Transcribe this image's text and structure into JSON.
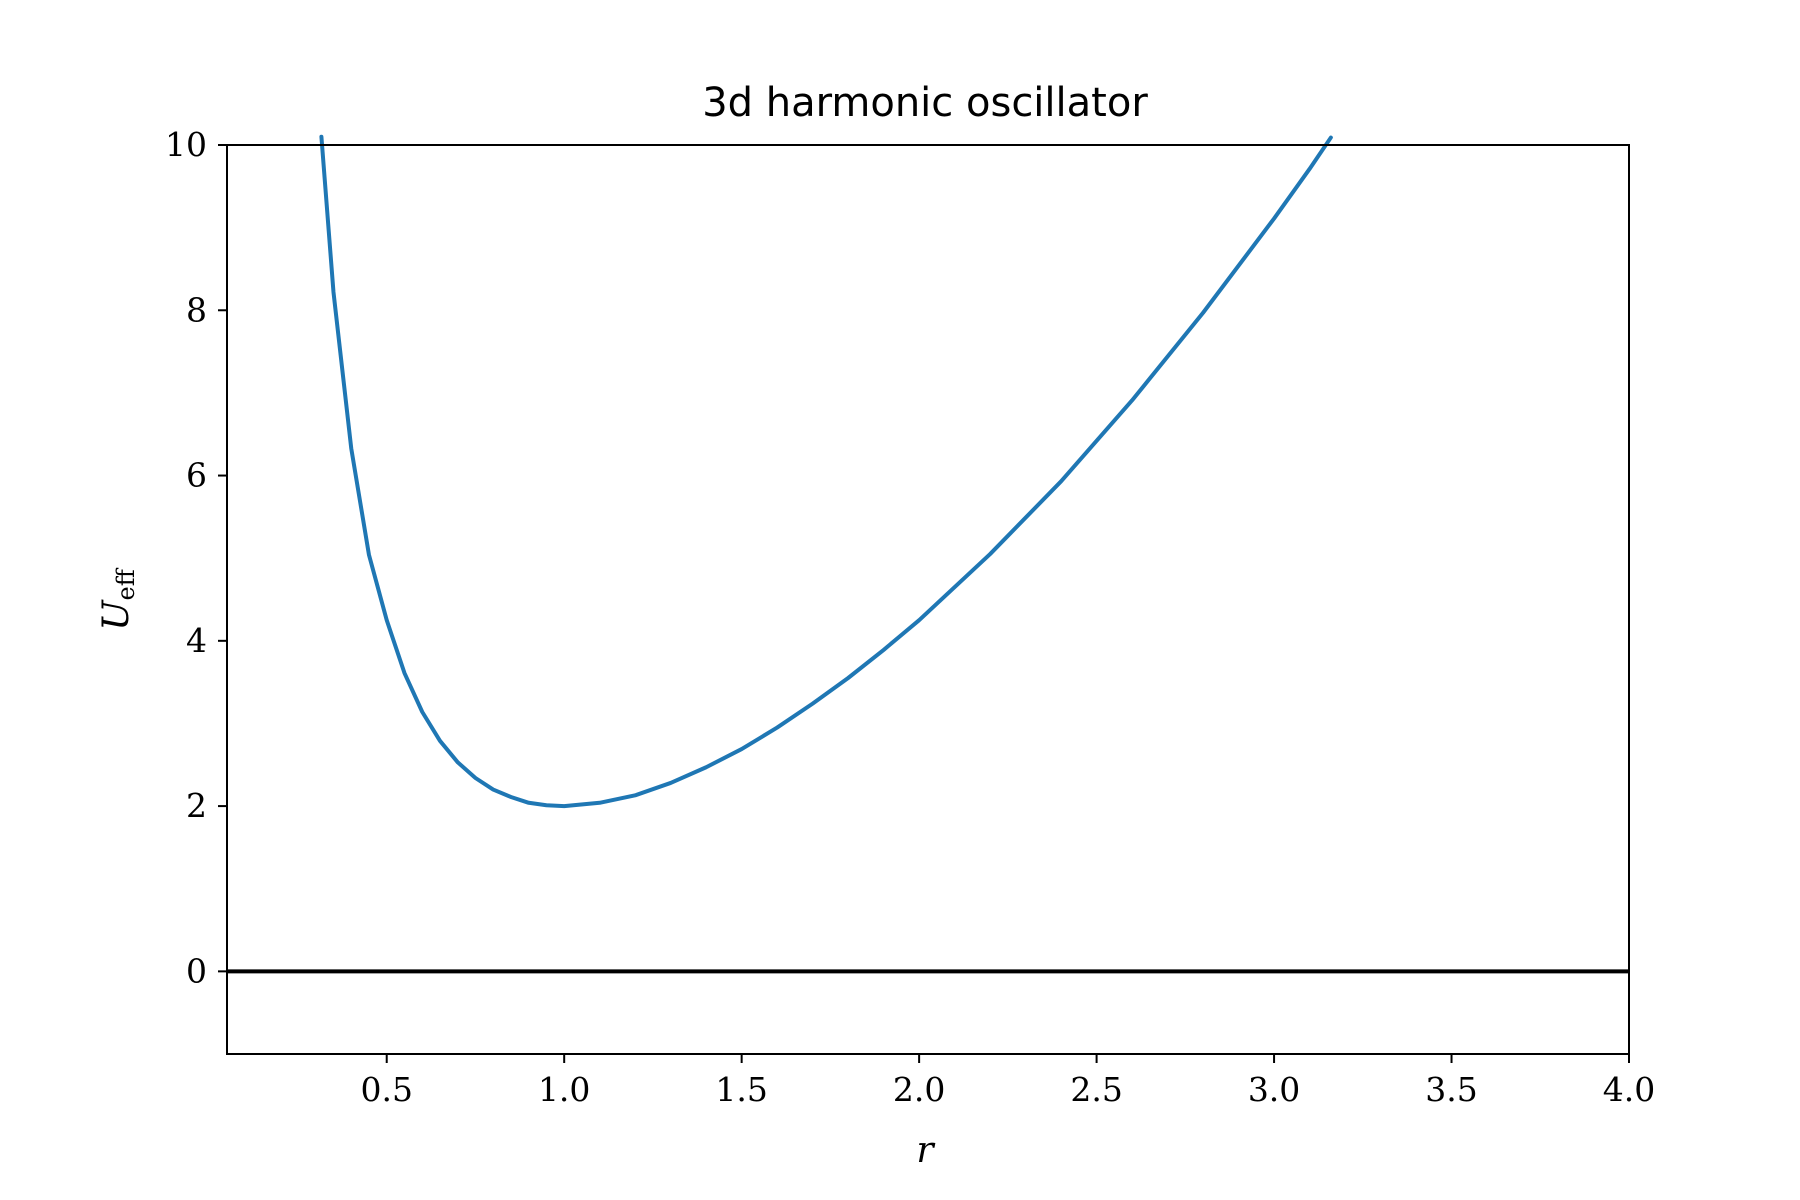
{
  "chart_data": {
    "type": "line",
    "title": "3d harmonic oscillator",
    "xlabel": "r",
    "ylabel": {
      "main": "U",
      "sub": "eff"
    },
    "xlim": [
      0.05,
      4.0
    ],
    "ylim": [
      -1,
      10
    ],
    "xticks": [
      0.5,
      1.0,
      1.5,
      2.0,
      2.5,
      3.0,
      3.5,
      4.0
    ],
    "xtick_labels": [
      "0.5",
      "1.0",
      "1.5",
      "2.0",
      "2.5",
      "3.0",
      "3.5",
      "4.0"
    ],
    "yticks": [
      0,
      2,
      4,
      6,
      8,
      10
    ],
    "ytick_labels": [
      "0",
      "2",
      "4",
      "6",
      "8",
      "10"
    ],
    "grid": false,
    "reference_line": {
      "y": 0,
      "color": "#000000"
    },
    "series": [
      {
        "color": "#1f77b4",
        "x": [
          0.316,
          0.35,
          0.4,
          0.45,
          0.5,
          0.55,
          0.6,
          0.65,
          0.7,
          0.75,
          0.8,
          0.85,
          0.9,
          0.95,
          1.0,
          1.1,
          1.2,
          1.3,
          1.4,
          1.5,
          1.6,
          1.7,
          1.8,
          1.9,
          2.0,
          2.2,
          2.4,
          2.6,
          2.8,
          3.0,
          3.1,
          3.16
        ],
        "y": [
          10.1,
          8.22,
          6.33,
          5.04,
          4.25,
          3.61,
          3.14,
          2.79,
          2.53,
          2.34,
          2.2,
          2.11,
          2.04,
          2.01,
          2.0,
          2.04,
          2.13,
          2.28,
          2.47,
          2.69,
          2.95,
          3.24,
          3.55,
          3.89,
          4.25,
          5.05,
          5.93,
          6.91,
          7.97,
          9.11,
          9.71,
          10.09
        ]
      }
    ]
  }
}
